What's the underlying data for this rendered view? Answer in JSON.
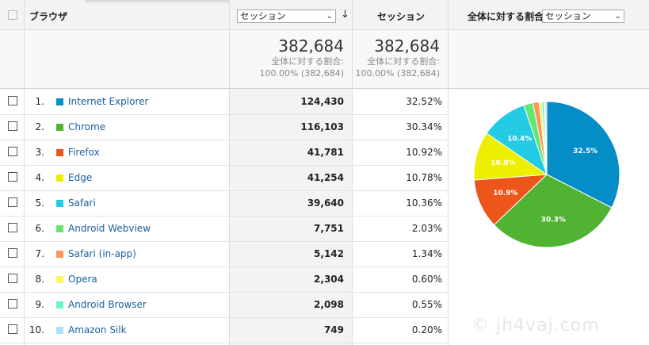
{
  "header": {
    "dimension_label": "ブラウザ",
    "metric_select": "セッション",
    "metric_column": "セッション",
    "ratio_label": "全体に対する割合:",
    "ratio_select": "セッション"
  },
  "totals": [
    {
      "value": "382,684",
      "line1": "全体に対する割合:",
      "line2": "100.00% (382,684)"
    },
    {
      "value": "382,684",
      "line1": "全体に対する割合:",
      "line2": "100.00% (382,684)"
    }
  ],
  "rows": [
    {
      "rank": "1.",
      "name": "Internet Explorer",
      "color": "#058dc7",
      "sessions": "124,430",
      "pct": "32.52%"
    },
    {
      "rank": "2.",
      "name": "Chrome",
      "color": "#50b432",
      "sessions": "116,103",
      "pct": "30.34%"
    },
    {
      "rank": "3.",
      "name": "Firefox",
      "color": "#ed561b",
      "sessions": "41,781",
      "pct": "10.92%"
    },
    {
      "rank": "4.",
      "name": "Edge",
      "color": "#edef00",
      "sessions": "41,254",
      "pct": "10.78%"
    },
    {
      "rank": "5.",
      "name": "Safari",
      "color": "#24cbe5",
      "sessions": "39,640",
      "pct": "10.36%"
    },
    {
      "rank": "6.",
      "name": "Android Webview",
      "color": "#64e572",
      "sessions": "7,751",
      "pct": "2.03%"
    },
    {
      "rank": "7.",
      "name": "Safari (in-app)",
      "color": "#ff9655",
      "sessions": "5,142",
      "pct": "1.34%"
    },
    {
      "rank": "8.",
      "name": "Opera",
      "color": "#fff263",
      "sessions": "2,304",
      "pct": "0.60%"
    },
    {
      "rank": "9.",
      "name": "Android Browser",
      "color": "#6af9c4",
      "sessions": "2,098",
      "pct": "0.55%"
    },
    {
      "rank": "10.",
      "name": "Amazon Silk",
      "color": "#b2deff",
      "sessions": "749",
      "pct": "0.20%"
    }
  ],
  "pie": {
    "slices": [
      32.52,
      30.34,
      10.92,
      10.78,
      10.36,
      2.03,
      1.34,
      0.6,
      0.55,
      0.2,
      0.36
    ],
    "colors": [
      "#058dc7",
      "#50b432",
      "#ed561b",
      "#edef00",
      "#24cbe5",
      "#64e572",
      "#ff9655",
      "#fff263",
      "#6af9c4",
      "#b2deff",
      "#cccccc"
    ],
    "labels": [
      "32.5%",
      "30.3%",
      "10.9%",
      "10.8%",
      "10.4%"
    ]
  },
  "watermark": "© jh4vaj.com"
}
